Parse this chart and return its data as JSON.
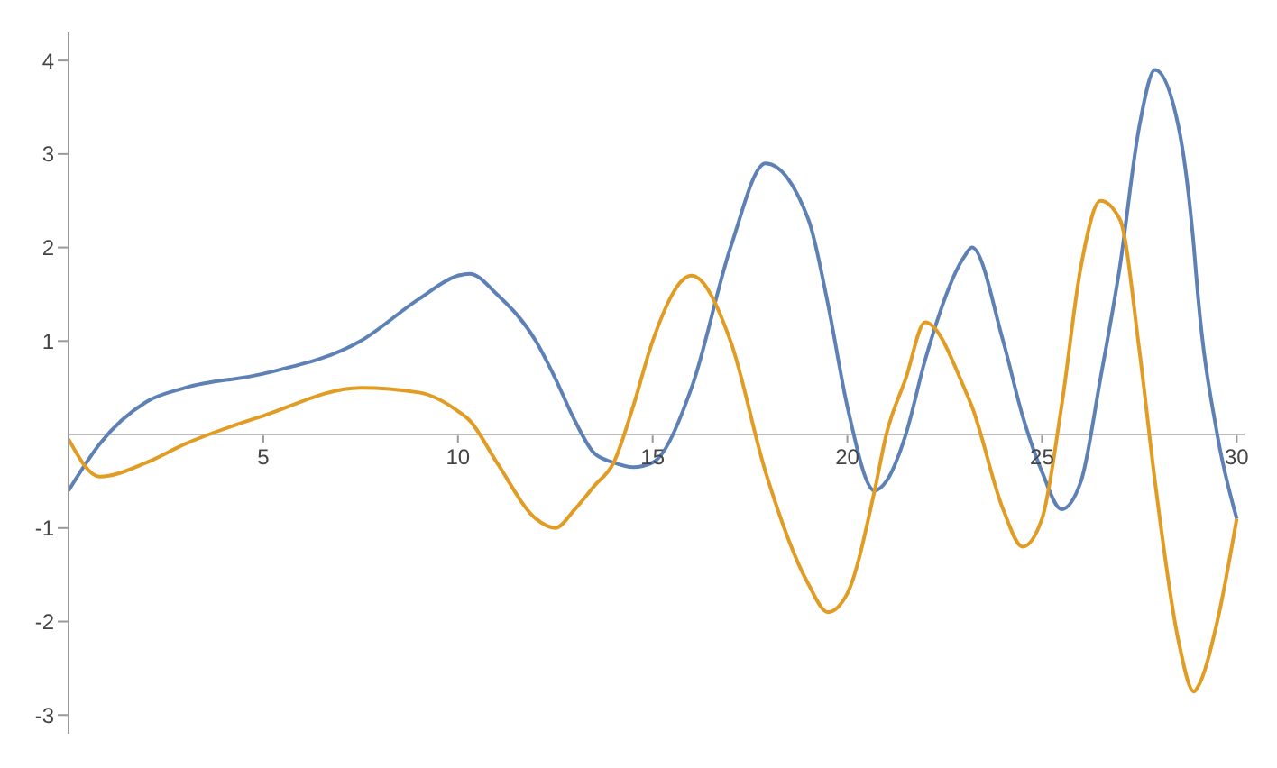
{
  "chart_data": {
    "type": "line",
    "x": [
      0,
      0.8,
      2,
      3,
      5,
      7.5,
      9,
      10,
      10.3,
      11,
      12,
      12.5,
      13,
      13.5,
      14,
      14.5,
      15,
      16,
      17,
      17.9,
      19,
      19.5,
      20,
      20.7,
      21,
      21.5,
      22,
      23,
      23.2,
      24,
      24.5,
      25,
      25.5,
      26,
      26.5,
      27,
      27.5,
      27.9,
      28.5,
      28.9,
      29,
      29.5,
      30
    ],
    "series": [
      {
        "color": "#5e81b5",
        "values": [
          -0.6,
          -0.1,
          0.35,
          0.5,
          0.65,
          1.0,
          1.45,
          1.7,
          1.72,
          1.5,
          1.0,
          0.6,
          0.15,
          -0.2,
          -0.3,
          -0.35,
          -0.3,
          0.5,
          2.0,
          2.9,
          2.3,
          1.4,
          0.3,
          -0.6,
          -0.5,
          0,
          0.8,
          1.9,
          2.0,
          1.0,
          0.2,
          -0.4,
          -0.8,
          -0.5,
          0.6,
          1.8,
          3.3,
          3.9,
          3.3,
          2.0,
          1.5,
          0,
          -0.9
        ]
      },
      {
        "color": "#e19c24",
        "values": [
          -0.05,
          -0.45,
          -0.3,
          -0.1,
          0.2,
          0.5,
          0.45,
          0.25,
          0.15,
          -0.3,
          -0.9,
          -1.0,
          -0.8,
          -0.55,
          -0.3,
          0.3,
          1.0,
          1.7,
          1.0,
          -0.4,
          -1.6,
          -1.9,
          -1.7,
          -0.6,
          0.0,
          0.6,
          1.2,
          0.5,
          0.3,
          -0.8,
          -1.2,
          -0.9,
          0.3,
          1.8,
          2.5,
          2.3,
          0.9,
          -0.5,
          -2.2,
          -2.75,
          -2.7,
          -2.0,
          -0.9
        ]
      }
    ],
    "xlim": [
      0,
      30.2
    ],
    "xticks": [
      5,
      10,
      15,
      20,
      25,
      30
    ],
    "ylim": [
      -3.2,
      4.3
    ],
    "yticks": [
      -3,
      -2,
      -1,
      1,
      2,
      3,
      4
    ],
    "grid": false,
    "legend": false,
    "marker": "none",
    "line_style": "solid"
  }
}
